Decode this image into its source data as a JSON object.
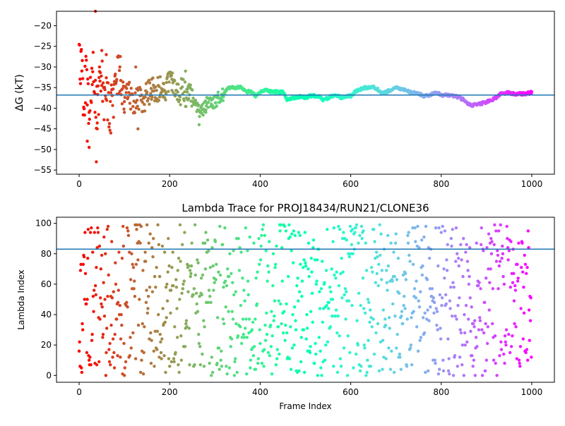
{
  "chart_data": [
    {
      "type": "scatter",
      "title": "",
      "xlabel": "",
      "ylabel": "ΔG (kT)",
      "xlim": [
        -50,
        1050
      ],
      "ylim": [
        -56,
        -16.5
      ],
      "xticks": [
        0,
        200,
        400,
        600,
        800,
        1000
      ],
      "yticks": [
        -55,
        -50,
        -45,
        -40,
        -35,
        -30,
        -25,
        -20
      ],
      "xtick_labels": [
        "0",
        "200",
        "400",
        "600",
        "800",
        "1000"
      ],
      "ytick_labels": [
        "−55",
        "−50",
        "−45",
        "−40",
        "−35",
        "−30",
        "−25",
        "−20"
      ],
      "hline": -36.8,
      "hline_color": "#1f77b4",
      "colormap": "rainbow (red at frame 0 → violet at frame 1000)",
      "anchors": [
        [
          0,
          -30
        ],
        [
          5,
          -30
        ],
        [
          10,
          -40
        ],
        [
          15,
          -32
        ],
        [
          20,
          -40
        ],
        [
          25,
          -37
        ],
        [
          30,
          -26.5
        ],
        [
          35,
          -37
        ],
        [
          40,
          -41
        ],
        [
          45,
          -35
        ],
        [
          50,
          -33
        ],
        [
          55,
          -40
        ],
        [
          60,
          -37
        ],
        [
          65,
          -39
        ],
        [
          70,
          -40
        ],
        [
          75,
          -37
        ],
        [
          80,
          -34
        ],
        [
          85,
          -31
        ],
        [
          90,
          -33
        ],
        [
          95,
          -35
        ],
        [
          100,
          -38
        ],
        [
          110,
          -36
        ],
        [
          120,
          -39
        ],
        [
          130,
          -37
        ],
        [
          140,
          -38
        ],
        [
          150,
          -37
        ],
        [
          160,
          -35
        ],
        [
          170,
          -36
        ],
        [
          180,
          -35
        ],
        [
          190,
          -35
        ],
        [
          200,
          -34
        ],
        [
          210,
          -35
        ],
        [
          220,
          -36
        ],
        [
          230,
          -36
        ],
        [
          240,
          -37
        ],
        [
          250,
          -37
        ],
        [
          260,
          -40
        ],
        [
          270,
          -41
        ],
        [
          280,
          -39
        ],
        [
          290,
          -38.5
        ],
        [
          300,
          -38.5
        ],
        [
          310,
          -37
        ],
        [
          320,
          -36.5
        ],
        [
          330,
          -35
        ],
        [
          340,
          -35
        ],
        [
          350,
          -35
        ],
        [
          360,
          -35
        ],
        [
          370,
          -36
        ],
        [
          380,
          -36
        ],
        [
          390,
          -37
        ],
        [
          400,
          -36
        ],
        [
          410,
          -35.5
        ],
        [
          420,
          -36
        ],
        [
          430,
          -36
        ],
        [
          440,
          -36
        ],
        [
          450,
          -36
        ],
        [
          460,
          -38
        ],
        [
          470,
          -37.5
        ],
        [
          480,
          -37.5
        ],
        [
          490,
          -37
        ],
        [
          500,
          -37.5
        ],
        [
          510,
          -37
        ],
        [
          520,
          -37
        ],
        [
          530,
          -37
        ],
        [
          540,
          -38
        ],
        [
          550,
          -37.5
        ],
        [
          560,
          -37
        ],
        [
          570,
          -37
        ],
        [
          580,
          -37.5
        ],
        [
          590,
          -37
        ],
        [
          600,
          -37
        ],
        [
          610,
          -36
        ],
        [
          620,
          -35.5
        ],
        [
          630,
          -35
        ],
        [
          640,
          -35
        ],
        [
          650,
          -34.8
        ],
        [
          660,
          -35.5
        ],
        [
          670,
          -36.5
        ],
        [
          680,
          -36
        ],
        [
          690,
          -35.5
        ],
        [
          700,
          -35
        ],
        [
          710,
          -35.2
        ],
        [
          720,
          -35.5
        ],
        [
          730,
          -36
        ],
        [
          740,
          -36.2
        ],
        [
          750,
          -36.5
        ],
        [
          760,
          -37
        ],
        [
          770,
          -37
        ],
        [
          780,
          -36.5
        ],
        [
          790,
          -36.2
        ],
        [
          800,
          -36.8
        ],
        [
          810,
          -36.8
        ],
        [
          820,
          -37
        ],
        [
          830,
          -37
        ],
        [
          840,
          -37.5
        ],
        [
          850,
          -38
        ],
        [
          860,
          -39
        ],
        [
          870,
          -39.3
        ],
        [
          880,
          -39
        ],
        [
          890,
          -38.8
        ],
        [
          900,
          -38.5
        ],
        [
          910,
          -38
        ],
        [
          920,
          -37.5
        ],
        [
          930,
          -36.5
        ],
        [
          940,
          -36.3
        ],
        [
          950,
          -36.3
        ],
        [
          960,
          -36.5
        ],
        [
          970,
          -36.5
        ],
        [
          980,
          -36.5
        ],
        [
          990,
          -36.4
        ],
        [
          1000,
          -36.2
        ]
      ],
      "outliers": [
        [
          36,
          -16.5
        ],
        [
          38,
          -53
        ],
        [
          18,
          -48
        ],
        [
          22,
          -49.5
        ],
        [
          40,
          -45
        ],
        [
          50,
          -26
        ],
        [
          60,
          -27
        ],
        [
          70,
          -46
        ],
        [
          90,
          -30
        ],
        [
          100,
          -41
        ],
        [
          125,
          -30
        ],
        [
          130,
          -45
        ],
        [
          160,
          -33
        ],
        [
          205,
          -33
        ],
        [
          235,
          -31
        ],
        [
          240,
          -38
        ],
        [
          265,
          -44
        ],
        [
          280,
          -41
        ],
        [
          35,
          -36.5
        ],
        [
          45,
          -30
        ]
      ]
    },
    {
      "type": "scatter",
      "title": "Lambda Trace for PROJ18434/RUN21/CLONE36",
      "xlabel": "Frame Index",
      "ylabel": "Lambda Index",
      "xlim": [
        -50,
        1050
      ],
      "ylim": [
        -4.5,
        104
      ],
      "xticks": [
        0,
        200,
        400,
        600,
        800,
        1000
      ],
      "yticks": [
        0,
        20,
        40,
        60,
        80,
        100
      ],
      "xtick_labels": [
        "0",
        "200",
        "400",
        "600",
        "800",
        "1000"
      ],
      "ytick_labels": [
        "0",
        "20",
        "40",
        "60",
        "80",
        "100"
      ],
      "hline": 83,
      "hline_color": "#1f77b4",
      "colormap": "rainbow (red at frame 0 → violet at frame 1000)",
      "n_points": 1000,
      "y_range": [
        0,
        99
      ],
      "distribution": "pseudo-uniform random lambda index per frame (seed 18434)"
    }
  ]
}
